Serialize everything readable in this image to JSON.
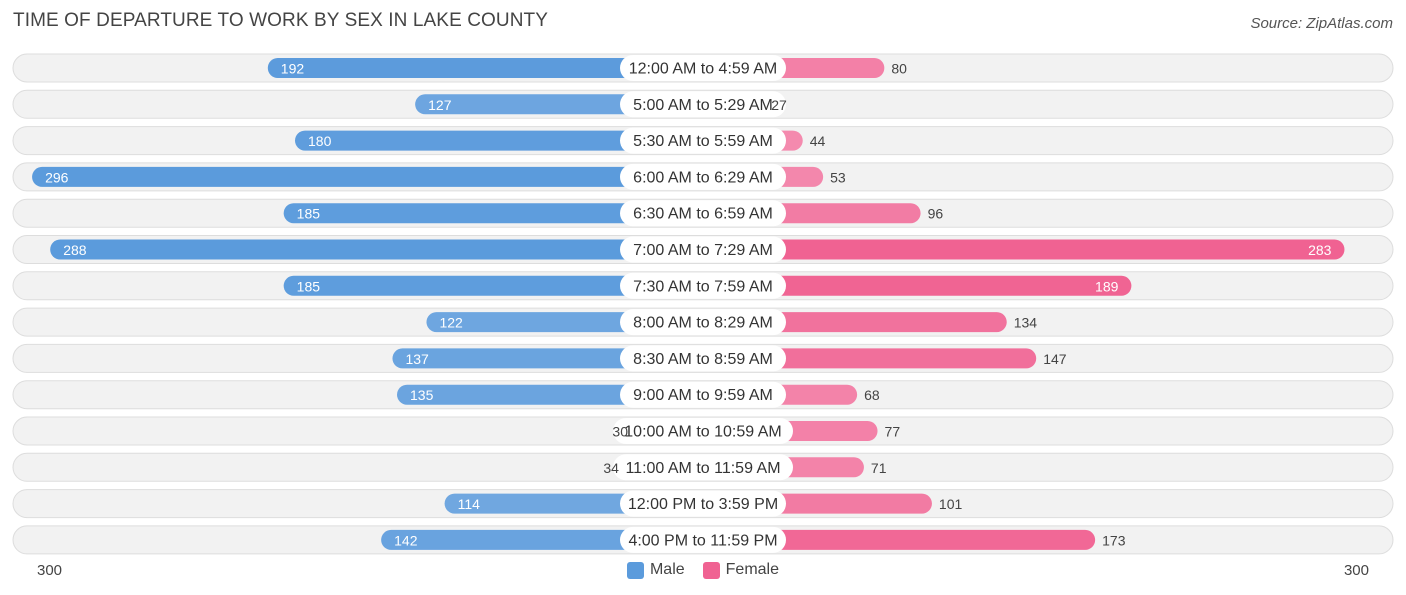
{
  "title": "TIME OF DEPARTURE TO WORK BY SEX IN LAKE COUNTY",
  "source": "Source: ZipAtlas.com",
  "chart_data": {
    "type": "bar",
    "orientation": "horizontal-diverging",
    "categories": [
      "12:00 AM to 4:59 AM",
      "5:00 AM to 5:29 AM",
      "5:30 AM to 5:59 AM",
      "6:00 AM to 6:29 AM",
      "6:30 AM to 6:59 AM",
      "7:00 AM to 7:29 AM",
      "7:30 AM to 7:59 AM",
      "8:00 AM to 8:29 AM",
      "8:30 AM to 8:59 AM",
      "9:00 AM to 9:59 AM",
      "10:00 AM to 10:59 AM",
      "11:00 AM to 11:59 AM",
      "12:00 PM to 3:59 PM",
      "4:00 PM to 11:59 PM"
    ],
    "series": [
      {
        "name": "Male",
        "values": [
          192,
          127,
          180,
          296,
          185,
          288,
          185,
          122,
          137,
          135,
          30,
          34,
          114,
          142
        ]
      },
      {
        "name": "Female",
        "values": [
          80,
          27,
          44,
          53,
          96,
          283,
          189,
          134,
          147,
          68,
          77,
          71,
          101,
          173
        ]
      }
    ],
    "axis_min_label": "300",
    "axis_max_label": "300",
    "xlim": [
      -300,
      300
    ],
    "colors": {
      "male": "#5b9bdc",
      "male_light": "#a9c9ec",
      "female": "#f06292",
      "female_light": "#f7b1c9"
    },
    "legend_position": "bottom-center"
  }
}
